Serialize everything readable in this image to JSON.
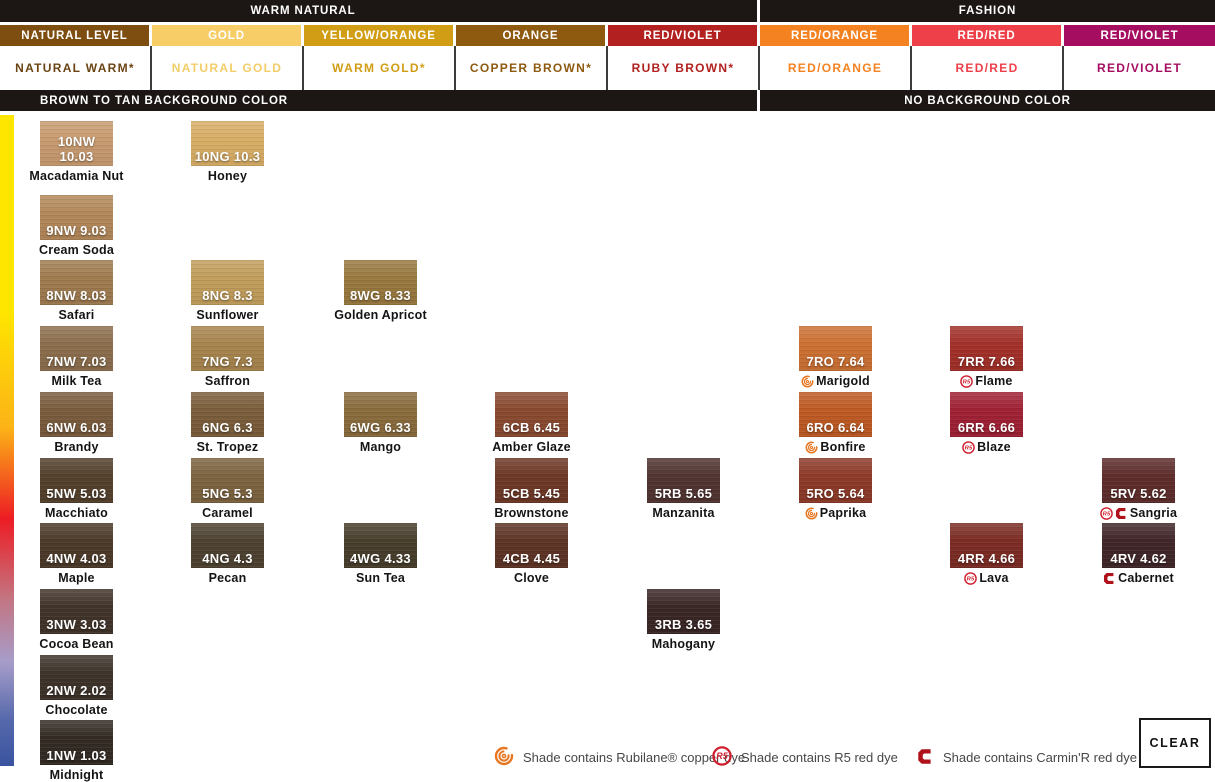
{
  "header": {
    "group_bars": [
      {
        "label": "WARM NATURAL"
      },
      {
        "label": "FASHION"
      }
    ],
    "categories": [
      {
        "label": "NATURAL LEVEL",
        "bg": "#7d4e10"
      },
      {
        "label": "GOLD",
        "bg": "#f6cd67"
      },
      {
        "label": "YELLOW/ORANGE",
        "bg": "#d09d15"
      },
      {
        "label": "ORANGE",
        "bg": "#8e5a10"
      },
      {
        "label": "RED/VIOLET",
        "bg": "#b2201f"
      },
      {
        "label": "RED/ORANGE",
        "bg": "#f58220"
      },
      {
        "label": "RED/RED",
        "bg": "#ee4049"
      },
      {
        "label": "RED/VIOLET",
        "bg": "#a50d61"
      }
    ],
    "tones": [
      {
        "label": "NATURAL WARM*",
        "color": "#6b4413"
      },
      {
        "label": "NATURAL GOLD",
        "color": "#f2cd68"
      },
      {
        "label": "WARM GOLD*",
        "color": "#d09d15"
      },
      {
        "label": "COPPER BROWN*",
        "color": "#8e5a10"
      },
      {
        "label": "RUBY BROWN*",
        "color": "#b2201f"
      },
      {
        "label": "RED/ORANGE",
        "color": "#f58220"
      },
      {
        "label": "RED/RED",
        "color": "#ee4049"
      },
      {
        "label": "RED/VIOLET",
        "color": "#a50d61"
      }
    ],
    "background_bars": [
      {
        "label": "BROWN TO TAN BACKGROUND COLOR"
      },
      {
        "label": "NO BACKGROUND COLOR"
      }
    ]
  },
  "spectrum_strip": {
    "stops": [
      "#ffe600",
      "#ffe600",
      "#fcb316",
      "#ed1c24",
      "#c4737f",
      "#a79dca",
      "#5568ab",
      "#3a53a0"
    ],
    "positions": [
      "0%",
      "30%",
      "48%",
      "62%",
      "74%",
      "84%",
      "93%",
      "100%"
    ]
  },
  "swatches": [
    {
      "code": "10NW 10.03",
      "name": "Macadamia Nut",
      "color": "#c89b70",
      "col": 0,
      "row": 0,
      "icons": []
    },
    {
      "code": "10NG 10.3",
      "name": "Honey",
      "color": "#d9ae66",
      "col": 1,
      "row": 0,
      "icons": []
    },
    {
      "code": "9NW 9.03",
      "name": "Cream Soda",
      "color": "#b3885a",
      "col": 0,
      "row": 1,
      "icons": []
    },
    {
      "code": "8NW 8.03",
      "name": "Safari",
      "color": "#a07b50",
      "col": 0,
      "row": 2,
      "icons": []
    },
    {
      "code": "8NG 8.3",
      "name": "Sunflower",
      "color": "#c29e5c",
      "col": 1,
      "row": 2,
      "icons": []
    },
    {
      "code": "8WG 8.33",
      "name": "Golden Apricot",
      "color": "#99793f",
      "col": 2,
      "row": 2,
      "icons": []
    },
    {
      "code": "7NW 7.03",
      "name": "Milk Tea",
      "color": "#8c6e4d",
      "col": 0,
      "row": 3,
      "icons": []
    },
    {
      "code": "7NG 7.3",
      "name": "Saffron",
      "color": "#a8854e",
      "col": 1,
      "row": 3,
      "icons": []
    },
    {
      "code": "7RO 7.64",
      "name": "Marigold",
      "color": "#cd7133",
      "col": 5,
      "row": 3,
      "icons": [
        "copper"
      ]
    },
    {
      "code": "7RR 7.66",
      "name": "Flame",
      "color": "#a33029",
      "col": 6,
      "row": 3,
      "icons": [
        "r5"
      ]
    },
    {
      "code": "6NW 6.03",
      "name": "Brandy",
      "color": "#7a5c3d",
      "col": 0,
      "row": 4,
      "icons": []
    },
    {
      "code": "6NG 6.3",
      "name": "St. Tropez",
      "color": "#7b5e3b",
      "col": 1,
      "row": 4,
      "icons": []
    },
    {
      "code": "6WG 6.33",
      "name": "Mango",
      "color": "#8a6c3d",
      "col": 2,
      "row": 4,
      "icons": []
    },
    {
      "code": "6CB 6.45",
      "name": "Amber Glaze",
      "color": "#8a4a30",
      "col": 3,
      "row": 4,
      "icons": []
    },
    {
      "code": "6RO 6.64",
      "name": "Bonfire",
      "color": "#bf5a24",
      "col": 5,
      "row": 4,
      "icons": [
        "copper"
      ]
    },
    {
      "code": "6RR 6.66",
      "name": "Blaze",
      "color": "#a02134",
      "col": 6,
      "row": 4,
      "icons": [
        "r5"
      ]
    },
    {
      "code": "5NW 5.03",
      "name": "Macchiato",
      "color": "#54402c",
      "col": 0,
      "row": 5,
      "icons": []
    },
    {
      "code": "5NG 5.3",
      "name": "Caramel",
      "color": "#7d6440",
      "col": 1,
      "row": 5,
      "icons": []
    },
    {
      "code": "5CB 5.45",
      "name": "Brownstone",
      "color": "#6e3826",
      "col": 3,
      "row": 5,
      "icons": []
    },
    {
      "code": "5RB 5.65",
      "name": "Manzanita",
      "color": "#513431",
      "col": 4,
      "row": 5,
      "icons": []
    },
    {
      "code": "5RO 5.64",
      "name": "Paprika",
      "color": "#8e3a28",
      "col": 5,
      "row": 5,
      "icons": [
        "copper"
      ]
    },
    {
      "code": "5RV 5.62",
      "name": "Sangria",
      "color": "#5e2d2b",
      "col": 7,
      "row": 5,
      "icons": [
        "r5",
        "carmin"
      ]
    },
    {
      "code": "4NW 4.03",
      "name": "Maple",
      "color": "#4c3a29",
      "col": 0,
      "row": 6,
      "icons": []
    },
    {
      "code": "4NG 4.3",
      "name": "Pecan",
      "color": "#4e4231",
      "col": 1,
      "row": 6,
      "icons": []
    },
    {
      "code": "4WG 4.33",
      "name": "Sun Tea",
      "color": "#483e2c",
      "col": 2,
      "row": 6,
      "icons": []
    },
    {
      "code": "4CB 4.45",
      "name": "Clove",
      "color": "#5e3425",
      "col": 3,
      "row": 6,
      "icons": []
    },
    {
      "code": "4RR 4.66",
      "name": "Lava",
      "color": "#7c2c24",
      "col": 6,
      "row": 6,
      "icons": [
        "r5"
      ]
    },
    {
      "code": "4RV 4.62",
      "name": "Cabernet",
      "color": "#402629",
      "col": 7,
      "row": 6,
      "icons": [
        "carmin"
      ]
    },
    {
      "code": "3NW 3.03",
      "name": "Cocoa Bean",
      "color": "#41342a",
      "col": 0,
      "row": 7,
      "icons": []
    },
    {
      "code": "3RB 3.65",
      "name": "Mahogany",
      "color": "#3a2725",
      "col": 4,
      "row": 7,
      "icons": []
    },
    {
      "code": "2NW 2.02",
      "name": "Chocolate",
      "color": "#3d332a",
      "col": 0,
      "row": 8,
      "icons": []
    },
    {
      "code": "1NW 1.03",
      "name": "Midnight",
      "color": "#332b24",
      "col": 0,
      "row": 9,
      "icons": []
    }
  ],
  "legend": {
    "icon_colors": {
      "copper": "#e87722",
      "r5": "#cf1f2e",
      "carmin": "#b0121c"
    },
    "items": [
      {
        "icon": "rubilane-copper-icon",
        "label": "Shade contains Rubilane® copper dye"
      },
      {
        "icon": "r5-red-icon",
        "label": "Shade contains R5 red dye"
      },
      {
        "icon": "carmin-r-icon",
        "label": "Shade contains Carmin'R red dye"
      }
    ]
  },
  "clear_button": {
    "label": "CLEAR"
  }
}
